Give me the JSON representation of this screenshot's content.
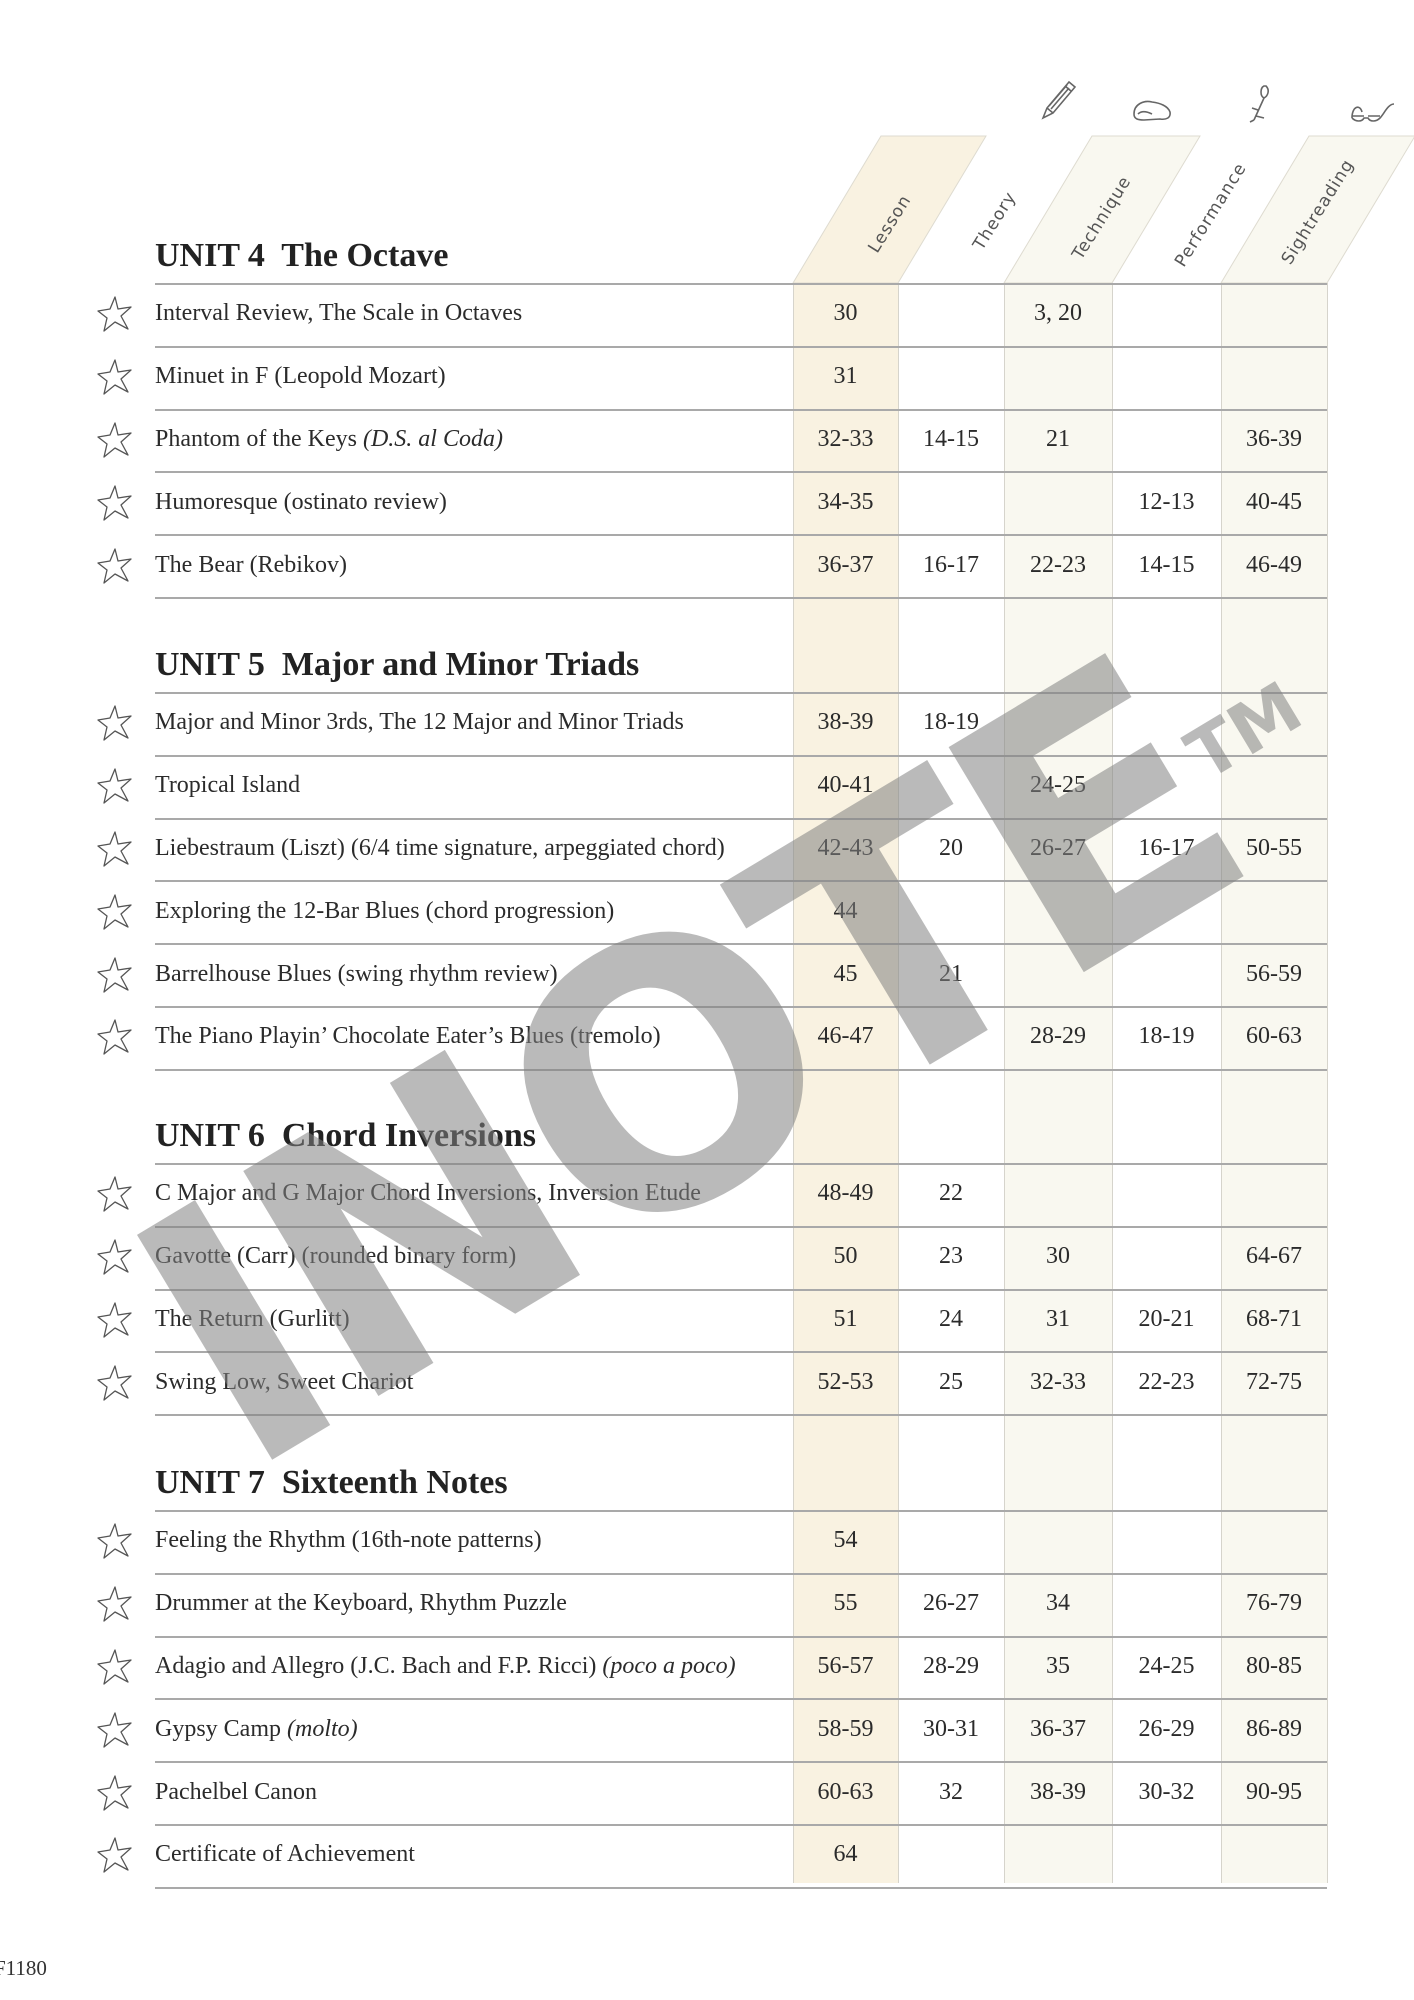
{
  "columns": [
    {
      "label": "Lesson",
      "icon": "",
      "fill": "#f9f2e1"
    },
    {
      "label": "Theory",
      "icon": "pencil-icon",
      "fill": "#ffffff"
    },
    {
      "label": "Technique",
      "icon": "hand-icon",
      "fill": "#f9f8f0"
    },
    {
      "label": "Performance",
      "icon": "rose-icon",
      "fill": "#ffffff"
    },
    {
      "label": "Sightreading",
      "icon": "glasses-icon",
      "fill": "#f9f8f0"
    }
  ],
  "sections": [
    {
      "title": "UNIT 4  The Octave",
      "rows": [
        {
          "title": "Interval Review, The Scale in Octaves",
          "italic": "",
          "cells": [
            "30",
            "",
            "3, 20",
            "",
            ""
          ]
        },
        {
          "title": "Minuet in F (Leopold Mozart)",
          "italic": "",
          "cells": [
            "31",
            "",
            "",
            "",
            ""
          ]
        },
        {
          "title": "Phantom of the Keys ",
          "italic": "(D.S. al Coda)",
          "cells": [
            "32-33",
            "14-15",
            "21",
            "",
            "36-39"
          ]
        },
        {
          "title": "Humoresque (ostinato review)",
          "italic": "",
          "cells": [
            "34-35",
            "",
            "",
            "12-13",
            "40-45"
          ]
        },
        {
          "title": "The Bear (Rebikov)",
          "italic": "",
          "cells": [
            "36-37",
            "16-17",
            "22-23",
            "14-15",
            "46-49"
          ]
        }
      ]
    },
    {
      "title": "UNIT 5  Major and Minor Triads",
      "rows": [
        {
          "title": "Major and Minor 3rds, The 12 Major and Minor Triads",
          "italic": "",
          "cells": [
            "38-39",
            "18-19",
            "",
            "",
            ""
          ]
        },
        {
          "title": "Tropical Island",
          "italic": "",
          "cells": [
            "40-41",
            "",
            "24-25",
            "",
            ""
          ]
        },
        {
          "title": "Liebestraum (Liszt) (6/4 time signature, arpeggiated chord)",
          "italic": "",
          "cells": [
            "42-43",
            "20",
            "26-27",
            "16-17",
            "50-55"
          ]
        },
        {
          "title": "Exploring the 12-Bar Blues (chord progression)",
          "italic": "",
          "cells": [
            "44",
            "",
            "",
            "",
            ""
          ]
        },
        {
          "title": "Barrelhouse Blues (swing rhythm review)",
          "italic": "",
          "cells": [
            "45",
            "21",
            "",
            "",
            "56-59"
          ]
        },
        {
          "title": "The Piano Playin’ Chocolate Eater’s Blues (tremolo)",
          "italic": "",
          "cells": [
            "46-47",
            "",
            "28-29",
            "18-19",
            "60-63"
          ]
        }
      ]
    },
    {
      "title": "UNIT 6  Chord Inversions",
      "rows": [
        {
          "title": "C Major and G Major Chord Inversions, Inversion Etude",
          "italic": "",
          "cells": [
            "48-49",
            "22",
            "",
            "",
            ""
          ]
        },
        {
          "title": "Gavotte (Carr) (rounded binary form)",
          "italic": "",
          "cells": [
            "50",
            "23",
            "30",
            "",
            "64-67"
          ]
        },
        {
          "title": "The Return (Gurlitt)",
          "italic": "",
          "cells": [
            "51",
            "24",
            "31",
            "20-21",
            "68-71"
          ]
        },
        {
          "title": "Swing Low, Sweet Chariot",
          "italic": "",
          "cells": [
            "52-53",
            "25",
            "32-33",
            "22-23",
            "72-75"
          ]
        }
      ]
    },
    {
      "title": "UNIT 7  Sixteenth Notes",
      "rows": [
        {
          "title": "Feeling the Rhythm (16th-note patterns)",
          "italic": "",
          "cells": [
            "54",
            "",
            "",
            "",
            ""
          ]
        },
        {
          "title": "Drummer at the Keyboard, Rhythm Puzzle",
          "italic": "",
          "cells": [
            "55",
            "26-27",
            "34",
            "",
            "76-79"
          ]
        },
        {
          "title": "Adagio and Allegro (J.C. Bach and F.P. Ricci) ",
          "italic": "(poco a poco)",
          "cells": [
            "56-57",
            "28-29",
            "35",
            "24-25",
            "80-85"
          ]
        },
        {
          "title": "Gypsy Camp ",
          "italic": "(molto)",
          "cells": [
            "58-59",
            "30-31",
            "36-37",
            "26-29",
            "86-89"
          ]
        },
        {
          "title": "Pachelbel Canon",
          "italic": "",
          "cells": [
            "60-63",
            "32",
            "38-39",
            "30-32",
            "90-95"
          ]
        },
        {
          "title": "Certificate of Achievement",
          "italic": "",
          "cells": [
            "64",
            "",
            "",
            "",
            ""
          ]
        }
      ]
    }
  ],
  "watermark": {
    "text": "INOTE",
    "tm": "TM"
  },
  "footer": {
    "code": "F1180"
  }
}
